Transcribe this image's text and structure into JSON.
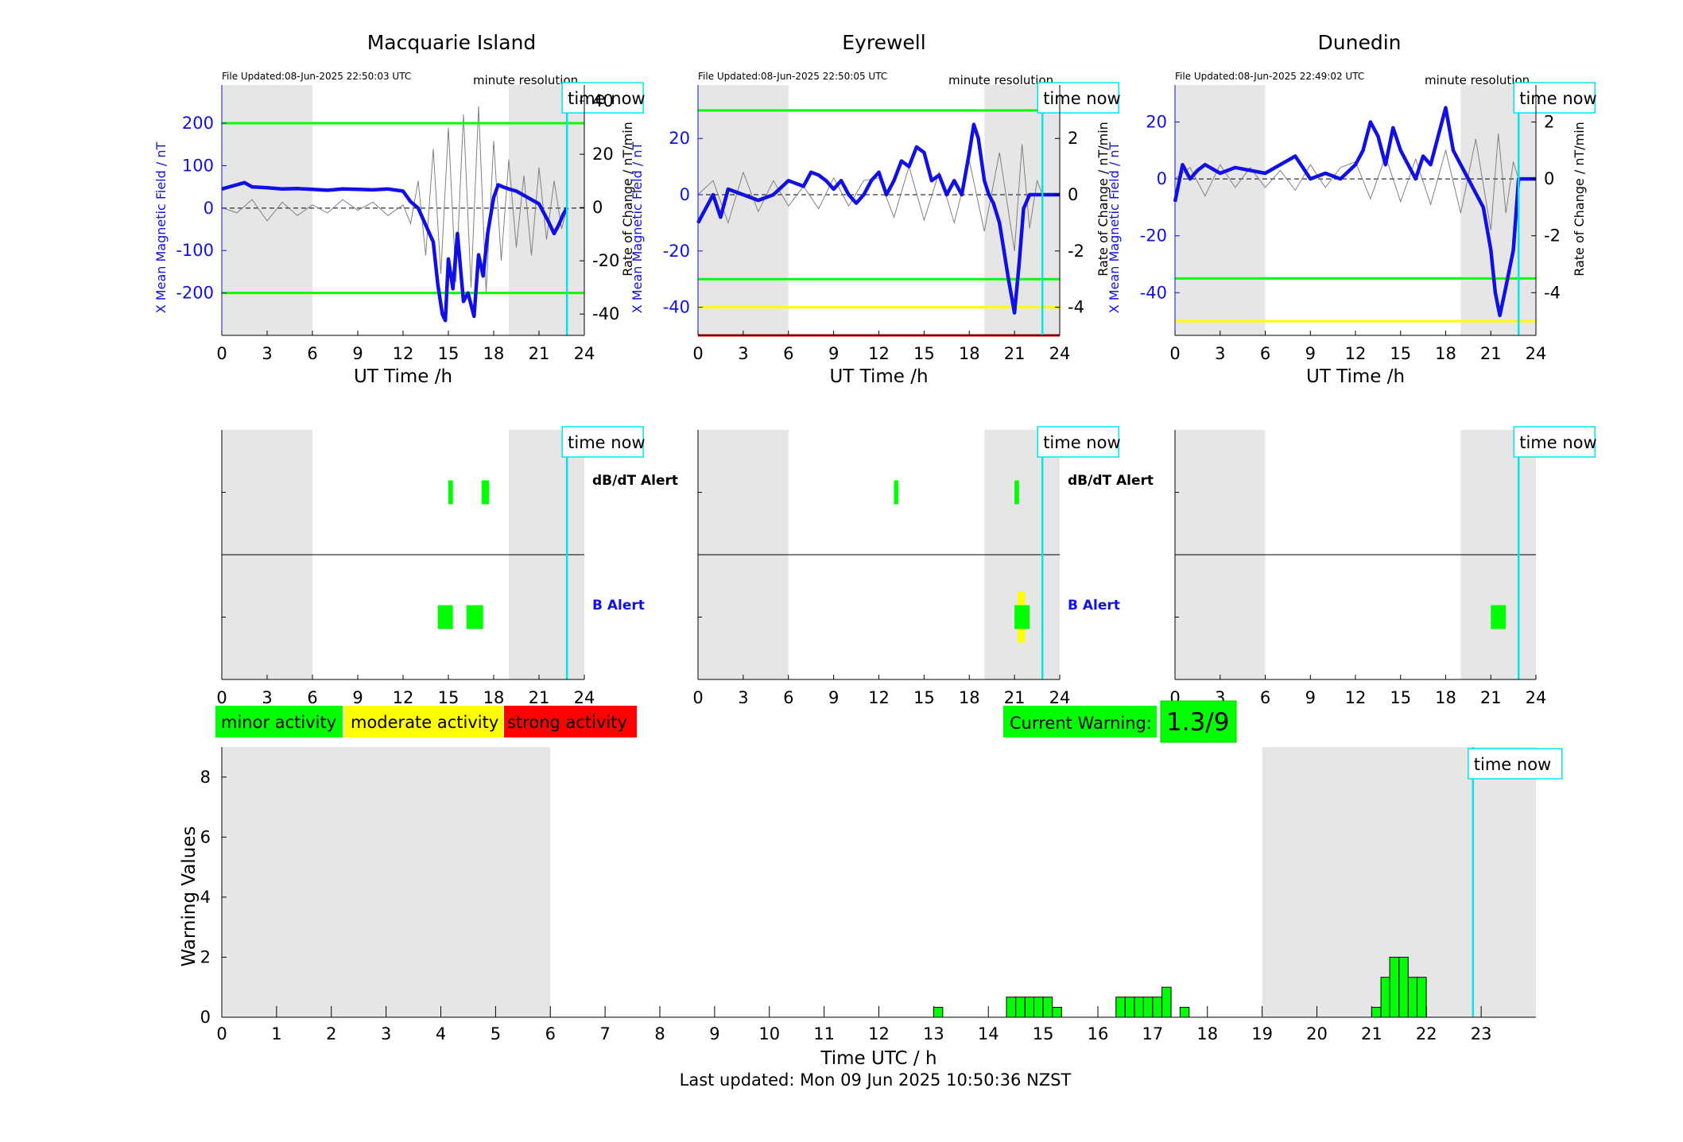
{
  "time_now_label": "time now",
  "minute_resolution_label": "minute resolution",
  "utc_xlabel": "UT Time /h",
  "left_ylabel": "X Mean Magnetic Field / nT",
  "right_ylabel": "Rate of Change / nT/min",
  "dbdt_alert_label": "dB/dT Alert",
  "b_alert_label": "B Alert",
  "legend": {
    "minor": "minor activity",
    "moderate": "moderate activity",
    "strong": "strong activity"
  },
  "current_warning": {
    "label": "Current Warning:",
    "value": "1.3/9"
  },
  "warning_chart": {
    "ylabel": "Warning Values",
    "xlabel": "Time UTC / h"
  },
  "footer": "Last updated: Mon 09 Jun 2025 10:50:36 NZST",
  "colors": {
    "night_shading": "#e6e6e6",
    "field_line": "#1010e6",
    "rate_line": "#808080",
    "threshold_minor": "#00ff00",
    "threshold_moderate": "#ffff00",
    "threshold_strong": "#e60000",
    "time_now": "#00e5ee",
    "alert_minor": "#00ff00",
    "alert_moderate": "#ffff00"
  },
  "chart_data": [
    {
      "type": "line",
      "station": "Macquarie Island",
      "file_updated": "File Updated:08-Jun-2025 22:50:03 UTC",
      "xlim": [
        0,
        24
      ],
      "x_ticks": [
        0,
        3,
        6,
        9,
        12,
        15,
        18,
        21,
        24
      ],
      "ylim_left": [
        -300,
        290
      ],
      "y_ticks_left": [
        200,
        100,
        0,
        -100,
        -200
      ],
      "ylim_right": [
        -48,
        46
      ],
      "y_ticks_right": [
        40,
        20,
        0,
        -20,
        -40
      ],
      "y_tick_labels_right": [
        "40",
        "20",
        "0",
        "-20",
        "-40"
      ],
      "night_spans": [
        [
          0,
          6
        ],
        [
          19,
          24
        ]
      ],
      "thresholds": [
        {
          "level": "minor",
          "value": 200
        },
        {
          "level": "minor",
          "value": -200
        }
      ],
      "time_now": 22.85,
      "field_series": {
        "x": [
          0,
          1,
          1.5,
          2,
          3,
          4,
          5,
          6,
          7,
          8,
          9,
          10,
          11,
          12,
          12.5,
          13,
          13.5,
          14,
          14.3,
          14.6,
          14.8,
          15,
          15.3,
          15.6,
          16,
          16.3,
          16.7,
          17,
          17.3,
          17.6,
          18,
          18.3,
          18.6,
          19,
          19.5,
          20,
          20.5,
          21,
          21.3,
          21.6,
          22,
          22.3,
          22.6,
          22.85
        ],
        "y": [
          45,
          55,
          60,
          50,
          48,
          45,
          46,
          44,
          42,
          45,
          44,
          43,
          45,
          40,
          15,
          0,
          -40,
          -80,
          -180,
          -250,
          -265,
          -120,
          -190,
          -60,
          -220,
          -200,
          -255,
          -110,
          -160,
          -60,
          25,
          55,
          50,
          45,
          40,
          30,
          20,
          10,
          -10,
          -30,
          -60,
          -40,
          -15,
          0
        ]
      },
      "rate_series": {
        "x": [
          0,
          1,
          2,
          3,
          4,
          5,
          6,
          7,
          8,
          9,
          10,
          11,
          12,
          12.5,
          13,
          13.5,
          14,
          14.5,
          15,
          15.5,
          16,
          16.5,
          17,
          17.5,
          18,
          18.5,
          19,
          19.5,
          20,
          20.5,
          21,
          21.5,
          22,
          22.5,
          22.85
        ],
        "y": [
          0,
          -2,
          3,
          -5,
          2,
          -3,
          1,
          -2,
          3,
          -1,
          2,
          -3,
          1,
          -6,
          10,
          -18,
          22,
          -25,
          30,
          -28,
          35,
          -30,
          38,
          -32,
          25,
          -20,
          18,
          -15,
          12,
          -18,
          15,
          -12,
          10,
          -8,
          0
        ]
      }
    },
    {
      "type": "line",
      "station": "Eyrewell",
      "file_updated": "File Updated:08-Jun-2025 22:50:05 UTC",
      "xlim": [
        0,
        24
      ],
      "x_ticks": [
        0,
        3,
        6,
        9,
        12,
        15,
        18,
        21,
        24
      ],
      "ylim_left": [
        -50,
        39
      ],
      "y_ticks_left": [
        20,
        0,
        -20,
        -40
      ],
      "ylim_right": [
        -5,
        3.9
      ],
      "y_ticks_right": [
        2,
        0,
        -2,
        -4
      ],
      "y_tick_labels_right": [
        "2",
        "0",
        "-2",
        "-4"
      ],
      "night_spans": [
        [
          0,
          6
        ],
        [
          19,
          24
        ]
      ],
      "thresholds": [
        {
          "level": "minor",
          "value": 30
        },
        {
          "level": "minor",
          "value": -30
        },
        {
          "level": "moderate",
          "value": -40
        },
        {
          "level": "strong",
          "value": -50
        }
      ],
      "time_now": 22.85,
      "field_series": {
        "x": [
          0,
          0.5,
          1,
          1.5,
          2,
          3,
          4,
          5,
          6,
          7,
          7.5,
          8,
          8.5,
          9,
          9.5,
          10,
          10.5,
          11,
          11.5,
          12,
          12.5,
          13,
          13.5,
          14,
          14.5,
          15,
          15.5,
          16,
          16.5,
          17,
          17.5,
          18,
          18.3,
          18.6,
          19,
          19.3,
          19.6,
          20,
          20.3,
          20.6,
          21,
          21.3,
          21.6,
          22,
          22.3,
          22.85,
          24
        ],
        "y": [
          -10,
          -5,
          0,
          -8,
          2,
          0,
          -2,
          0,
          5,
          3,
          8,
          7,
          5,
          2,
          5,
          0,
          -3,
          0,
          5,
          8,
          0,
          5,
          12,
          10,
          17,
          15,
          5,
          7,
          0,
          5,
          0,
          15,
          25,
          20,
          5,
          0,
          -3,
          -10,
          -20,
          -30,
          -42,
          -25,
          -5,
          0,
          0,
          0,
          0
        ]
      },
      "rate_series": {
        "x": [
          0,
          1,
          2,
          3,
          4,
          5,
          6,
          7,
          8,
          9,
          10,
          11,
          12,
          13,
          14,
          15,
          16,
          17,
          18,
          19,
          20,
          21,
          21.5,
          22,
          22.5,
          22.85
        ],
        "y": [
          0,
          0.5,
          -1,
          0.8,
          -0.6,
          0.5,
          -0.4,
          0.3,
          -0.5,
          0.6,
          -0.4,
          0.5,
          0.6,
          -0.8,
          1,
          -0.9,
          0.8,
          -1,
          1.2,
          -1.3,
          1.5,
          -2,
          1.8,
          -1.2,
          0.5,
          0
        ]
      }
    },
    {
      "type": "line",
      "station": "Dunedin",
      "file_updated": "File Updated:08-Jun-2025 22:49:02 UTC",
      "xlim": [
        0,
        24
      ],
      "x_ticks": [
        0,
        3,
        6,
        9,
        12,
        15,
        18,
        21,
        24
      ],
      "ylim_left": [
        -55,
        33
      ],
      "y_ticks_left": [
        20,
        0,
        -20,
        -40
      ],
      "ylim_right": [
        -5.5,
        3.3
      ],
      "y_ticks_right": [
        2,
        0,
        -2,
        -4
      ],
      "y_tick_labels_right": [
        "2",
        "0",
        "-2",
        "-4"
      ],
      "night_spans": [
        [
          0,
          6
        ],
        [
          19,
          24
        ]
      ],
      "thresholds": [
        {
          "level": "minor",
          "value": -35
        },
        {
          "level": "moderate",
          "value": -50
        }
      ],
      "time_now": 22.85,
      "field_series": {
        "x": [
          0,
          0.5,
          1,
          1.5,
          2,
          3,
          4,
          5,
          6,
          7,
          8,
          9,
          10,
          11,
          12,
          12.5,
          13,
          13.5,
          14,
          14.5,
          15,
          15.5,
          16,
          16.5,
          17,
          17.5,
          18,
          18.5,
          19,
          19.5,
          20,
          20.5,
          21,
          21.3,
          21.6,
          22,
          22.5,
          22.85,
          24
        ],
        "y": [
          -8,
          5,
          0,
          3,
          5,
          2,
          4,
          3,
          2,
          5,
          8,
          0,
          2,
          0,
          5,
          10,
          20,
          15,
          5,
          18,
          10,
          5,
          0,
          8,
          5,
          15,
          25,
          10,
          5,
          0,
          -5,
          -10,
          -25,
          -40,
          -48,
          -38,
          -25,
          0,
          0
        ]
      },
      "rate_series": {
        "x": [
          0,
          1,
          2,
          3,
          4,
          5,
          6,
          7,
          8,
          9,
          10,
          11,
          12,
          13,
          14,
          15,
          16,
          17,
          18,
          19,
          20,
          21,
          21.5,
          22,
          22.5,
          22.85
        ],
        "y": [
          0,
          0.4,
          -0.6,
          0.5,
          -0.3,
          0.4,
          -0.3,
          0.3,
          -0.4,
          0.5,
          -0.3,
          0.4,
          0.6,
          -0.7,
          0.8,
          -0.8,
          0.7,
          -0.9,
          1,
          -1.2,
          1.4,
          -1.8,
          1.6,
          -1.2,
          0.6,
          0
        ]
      }
    },
    {
      "type": "bar",
      "panel": "alerts",
      "station": "Macquarie Island",
      "xlim": [
        0,
        24
      ],
      "x_ticks": [
        0,
        3,
        6,
        9,
        12,
        15,
        18,
        21,
        24
      ],
      "night_spans": [
        [
          0,
          6
        ],
        [
          19,
          24
        ]
      ],
      "time_now": 22.85,
      "dbdt_alerts": [
        {
          "start": 15.0,
          "end": 15.3,
          "level": "minor"
        },
        {
          "start": 17.2,
          "end": 17.7,
          "level": "minor"
        }
      ],
      "b_alerts": [
        {
          "start": 14.3,
          "end": 15.3,
          "level": "minor"
        },
        {
          "start": 16.2,
          "end": 17.3,
          "level": "minor"
        }
      ]
    },
    {
      "type": "bar",
      "panel": "alerts",
      "station": "Eyrewell",
      "xlim": [
        0,
        24
      ],
      "x_ticks": [
        0,
        3,
        6,
        9,
        12,
        15,
        18,
        21,
        24
      ],
      "night_spans": [
        [
          0,
          6
        ],
        [
          19,
          24
        ]
      ],
      "time_now": 22.85,
      "dbdt_alerts": [
        {
          "start": 13.0,
          "end": 13.3,
          "level": "minor"
        },
        {
          "start": 21.0,
          "end": 21.3,
          "level": "minor"
        }
      ],
      "b_alerts": [
        {
          "start": 21.2,
          "end": 21.7,
          "level": "moderate"
        },
        {
          "start": 21.0,
          "end": 22.0,
          "level": "minor"
        }
      ]
    },
    {
      "type": "bar",
      "panel": "alerts",
      "station": "Dunedin",
      "xlim": [
        0,
        24
      ],
      "x_ticks": [
        0,
        3,
        6,
        9,
        12,
        15,
        18,
        21,
        24
      ],
      "night_spans": [
        [
          0,
          6
        ],
        [
          19,
          24
        ]
      ],
      "time_now": 22.85,
      "dbdt_alerts": [],
      "b_alerts": [
        {
          "start": 21.0,
          "end": 22.0,
          "level": "minor"
        }
      ]
    },
    {
      "type": "bar",
      "panel": "warning_values",
      "xlim": [
        0,
        24
      ],
      "x_ticks": [
        0,
        1,
        2,
        3,
        4,
        5,
        6,
        7,
        8,
        9,
        10,
        11,
        12,
        13,
        14,
        15,
        16,
        17,
        18,
        19,
        20,
        21,
        22,
        23
      ],
      "ylim": [
        0,
        9
      ],
      "y_ticks": [
        0,
        2,
        4,
        6,
        8
      ],
      "ylabel": "Warning Values",
      "xlabel": "Time UTC / h",
      "night_spans": [
        [
          0,
          6
        ],
        [
          19,
          24
        ]
      ],
      "time_now": 22.85,
      "bar_width_h": 0.1667,
      "bars": [
        {
          "x": 13.0,
          "value": 0.33
        },
        {
          "x": 14.33,
          "value": 0.67
        },
        {
          "x": 14.5,
          "value": 0.67
        },
        {
          "x": 14.67,
          "value": 0.67
        },
        {
          "x": 14.83,
          "value": 0.67
        },
        {
          "x": 15.0,
          "value": 0.67
        },
        {
          "x": 15.17,
          "value": 0.33
        },
        {
          "x": 16.33,
          "value": 0.67
        },
        {
          "x": 16.5,
          "value": 0.67
        },
        {
          "x": 16.67,
          "value": 0.67
        },
        {
          "x": 16.83,
          "value": 0.67
        },
        {
          "x": 17.0,
          "value": 0.67
        },
        {
          "x": 17.17,
          "value": 1.0
        },
        {
          "x": 17.5,
          "value": 0.33
        },
        {
          "x": 21.0,
          "value": 0.33
        },
        {
          "x": 21.17,
          "value": 1.33
        },
        {
          "x": 21.33,
          "value": 2.0
        },
        {
          "x": 21.5,
          "value": 2.0
        },
        {
          "x": 21.67,
          "value": 1.33
        },
        {
          "x": 21.83,
          "value": 1.33
        }
      ]
    }
  ]
}
